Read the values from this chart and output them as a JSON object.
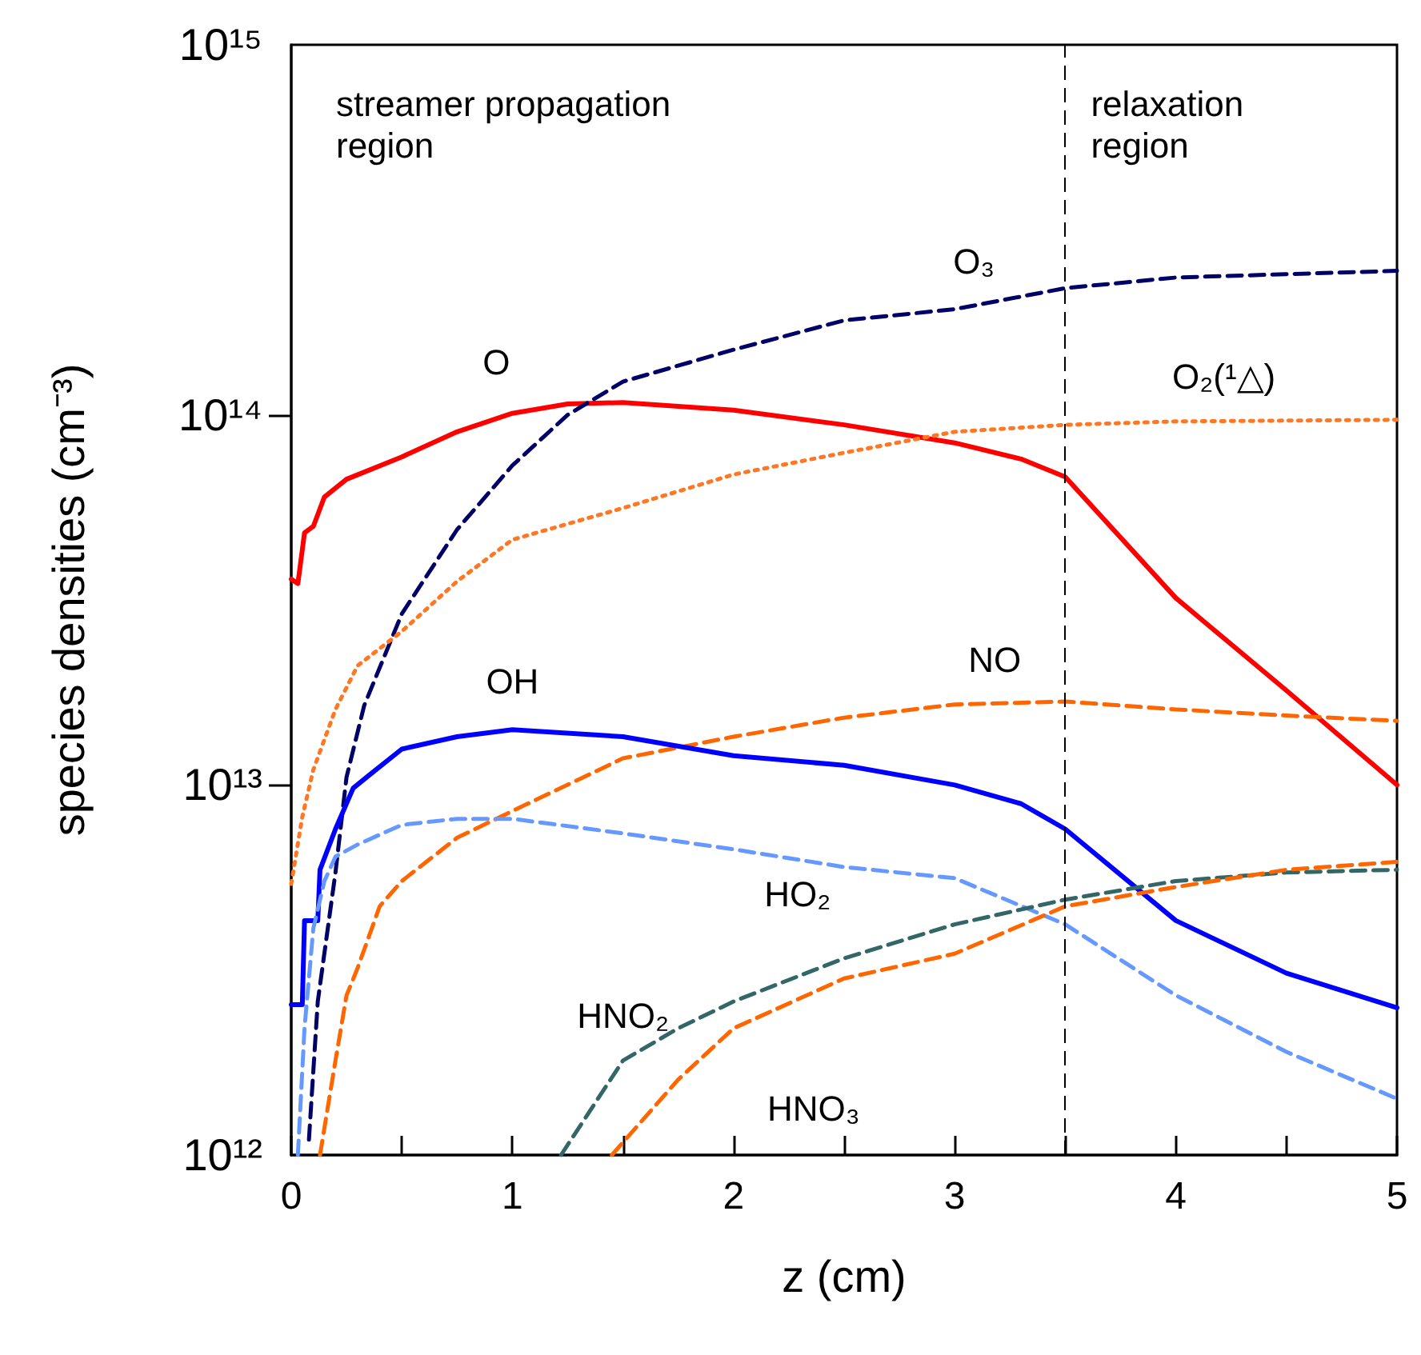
{
  "chart_data": {
    "type": "line",
    "xlabel": "z (cm)",
    "ylabel": "species densities (cm⁻³)",
    "xlim": [
      0,
      5
    ],
    "xticks": [
      0,
      {
        "value": 0.5,
        "label": null
      },
      1,
      {
        "value": 1.5,
        "label": null
      },
      2,
      {
        "value": 2.5,
        "label": null
      },
      3,
      {
        "value": 3.5,
        "label": null
      },
      4,
      {
        "value": 4.5,
        "label": null
      },
      5
    ],
    "ylim": [
      1000000000000.0,
      1000000000000000.0
    ],
    "yticks": [
      {
        "value": 1000000000000.0,
        "label": "10¹²"
      },
      {
        "value": 10000000000000.0,
        "label": "10¹³"
      },
      {
        "value": 100000000000000.0,
        "label": "10¹⁴"
      },
      {
        "value": 1000000000000000.0,
        "label": "10¹⁵"
      }
    ],
    "log": "y",
    "marker": "none",
    "annotations": [
      "streamer propagation region",
      "relaxation region"
    ],
    "ref_lines": [
      {
        "axis": "x",
        "value": 3.5,
        "color": "#000000",
        "line_style": "dashed"
      }
    ],
    "series": [
      {
        "name": "O",
        "color": "#ff0000",
        "line_style": "solid",
        "x": [
          0,
          0.03,
          0.06,
          0.1,
          0.15,
          0.25,
          0.5,
          0.75,
          1,
          1.25,
          1.5,
          2,
          2.5,
          3,
          3.3,
          3.5,
          4,
          4.5,
          5
        ],
        "values": [
          36000000000000.0,
          35000000000000.0,
          48000000000000.0,
          50000000000000.0,
          60000000000000.0,
          67000000000000.0,
          77000000000000.0,
          90000000000000.0,
          101000000000000.0,
          107000000000000.0,
          108000000000000.0,
          103000000000000.0,
          94000000000000.0,
          84000000000000.0,
          76000000000000.0,
          68000000000000.0,
          32000000000000.0,
          18000000000000.0,
          10000000000000.0
        ]
      },
      {
        "name": "O₃",
        "color": "#000066",
        "line_style": "dashed",
        "x": [
          0.08,
          0.12,
          0.2,
          0.25,
          0.33,
          0.5,
          0.75,
          1,
          1.25,
          1.5,
          2,
          2.5,
          3,
          3.5,
          4,
          4.5,
          5
        ],
        "values": [
          1100000000000.0,
          2600000000000.0,
          5800000000000.0,
          10500000000000.0,
          16400000000000.0,
          29000000000000.0,
          49000000000000.0,
          73000000000000.0,
          100000000000000.0,
          123000000000000.0,
          150000000000000.0,
          180000000000000.0,
          193000000000000.0,
          220000000000000.0,
          235000000000000.0,
          240000000000000.0,
          245000000000000.0
        ]
      },
      {
        "name": "O₂(¹△)",
        "color": "#ff7722",
        "line_style": "dotted",
        "x": [
          0,
          0.05,
          0.1,
          0.2,
          0.3,
          0.5,
          0.75,
          1,
          1.5,
          2,
          2.5,
          3,
          3.5,
          4,
          5
        ],
        "values": [
          5400000000000.0,
          8200000000000.0,
          11000000000000.0,
          16000000000000.0,
          21000000000000.0,
          26000000000000.0,
          35500000000000.0,
          46000000000000.0,
          56000000000000.0,
          69000000000000.0,
          79000000000000.0,
          90000000000000.0,
          94000000000000.0,
          96000000000000.0,
          97000000000000.0
        ]
      },
      {
        "name": "NO",
        "color": "#ff6600",
        "line_style": "dashed",
        "x": [
          0.13,
          0.2,
          0.25,
          0.3,
          0.4,
          0.5,
          0.75,
          1,
          1.5,
          2,
          2.5,
          3,
          3.5,
          4,
          4.5,
          5
        ],
        "values": [
          1000000000000.0,
          1800000000000.0,
          2700000000000.0,
          3200000000000.0,
          4700000000000.0,
          5500000000000.0,
          7200000000000.0,
          8500000000000.0,
          11800000000000.0,
          13500000000000.0,
          15200000000000.0,
          16500000000000.0,
          16800000000000.0,
          16000000000000.0,
          15400000000000.0,
          14900000000000.0
        ]
      },
      {
        "name": "OH",
        "color": "#0000ff",
        "line_style": "solid",
        "x": [
          0,
          0.05,
          0.06,
          0.12,
          0.13,
          0.2,
          0.28,
          0.35,
          0.5,
          0.75,
          1,
          1.5,
          2,
          2.5,
          3,
          3.3,
          3.5,
          4,
          4.5,
          5
        ],
        "values": [
          2550000000000.0,
          2550000000000.0,
          4300000000000.0,
          4300000000000.0,
          5900000000000.0,
          7600000000000.0,
          9800000000000.0,
          10600000000000.0,
          12500000000000.0,
          13500000000000.0,
          14100000000000.0,
          13500000000000.0,
          12000000000000.0,
          11300000000000.0,
          10000000000000.0,
          8900000000000.0,
          7600000000000.0,
          4300000000000.0,
          3100000000000.0,
          2500000000000.0
        ]
      },
      {
        "name": "HO₂",
        "color": "#6699ff",
        "line_style": "dashed",
        "x": [
          0.03,
          0.06,
          0.1,
          0.15,
          0.2,
          0.3,
          0.5,
          0.75,
          1,
          1.5,
          2,
          2.5,
          3,
          3.5,
          4,
          4.5,
          5
        ],
        "values": [
          1000000000000.0,
          2200000000000.0,
          4100000000000.0,
          5500000000000.0,
          6400000000000.0,
          6900000000000.0,
          7800000000000.0,
          8100000000000.0,
          8100000000000.0,
          7400000000000.0,
          6700000000000.0,
          6000000000000.0,
          5600000000000.0,
          4200000000000.0,
          2700000000000.0,
          1900000000000.0,
          1420000000000.0
        ]
      },
      {
        "name": "HNO₂",
        "color": "#336666",
        "line_style": "dashed",
        "x": [
          1.22,
          1.5,
          1.75,
          2,
          2.5,
          3,
          3.5,
          4,
          4.5,
          5
        ],
        "values": [
          1000000000000.0,
          1800000000000.0,
          2200000000000.0,
          2600000000000.0,
          3400000000000.0,
          4200000000000.0,
          4900000000000.0,
          5500000000000.0,
          5800000000000.0,
          5900000000000.0
        ]
      },
      {
        "name": "HNO₃",
        "color": "#ff6600",
        "line_style": "dashed",
        "x": [
          1.45,
          1.75,
          2,
          2.5,
          3,
          3.5,
          4,
          4.5,
          5
        ],
        "values": [
          1000000000000.0,
          1600000000000.0,
          2200000000000.0,
          3000000000000.0,
          3500000000000.0,
          4700000000000.0,
          5300000000000.0,
          5900000000000.0,
          6200000000000.0
        ]
      }
    ]
  }
}
